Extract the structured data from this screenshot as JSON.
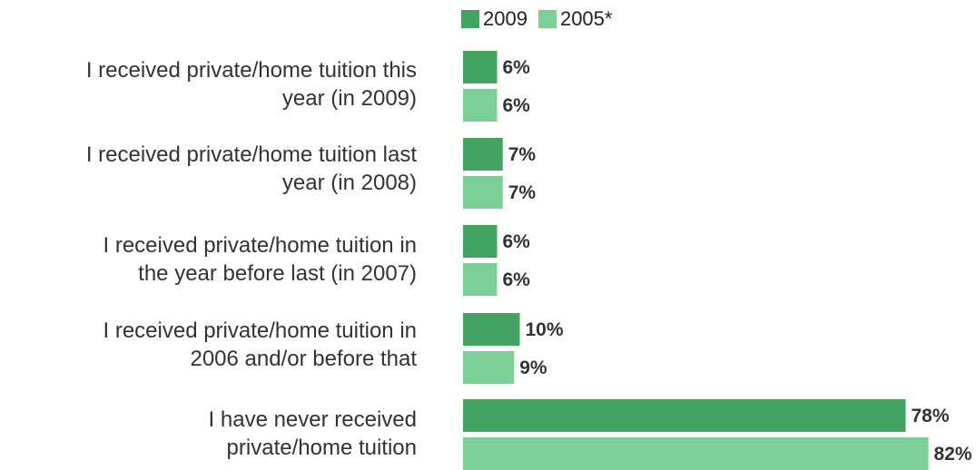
{
  "chart_data": {
    "type": "bar",
    "orientation": "horizontal",
    "categories": [
      "I received private/home tuition this year (in 2009)",
      "I received private/home tuition last year (in 2008)",
      "I received private/home tuition in the year before last (in 2007)",
      "I received private/home tuition in 2006 and/or before that",
      "I have never received private/home tuition"
    ],
    "category_lines": [
      [
        "I received private/home tuition this",
        "year (in 2009)"
      ],
      [
        "I received private/home tuition last",
        "year (in 2008)"
      ],
      [
        "I received private/home tuition in",
        "the year before last (in 2007)"
      ],
      [
        "I received private/home tuition in",
        "2006 and/or before that"
      ],
      [
        "I have never received",
        "private/home tuition"
      ]
    ],
    "series": [
      {
        "name": "2009",
        "values": [
          6,
          7,
          6,
          10,
          78
        ],
        "labels": [
          "6%",
          "7%",
          "6%",
          "10%",
          "78%"
        ],
        "color": "#43a363"
      },
      {
        "name": "2005*",
        "values": [
          6,
          7,
          6,
          9,
          82
        ],
        "labels": [
          "6%",
          "7%",
          "6%",
          "9%",
          "82%"
        ],
        "color": "#7dcf98"
      }
    ],
    "xlim": [
      0,
      100
    ],
    "legend_position": "top",
    "grid": false
  }
}
